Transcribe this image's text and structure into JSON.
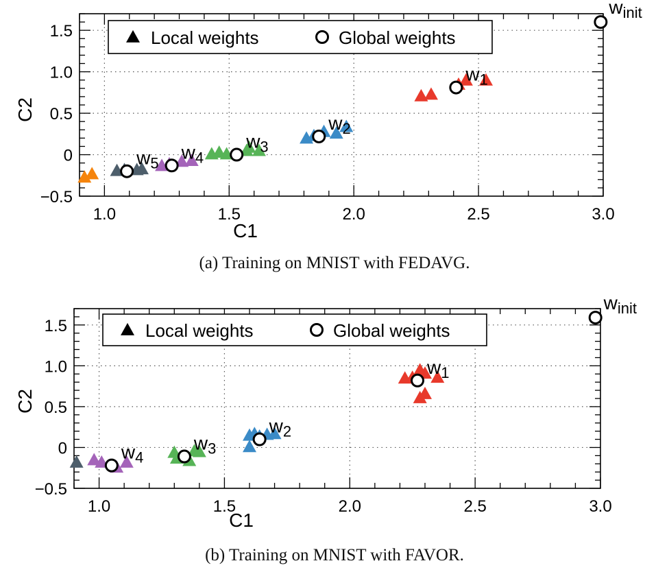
{
  "chart_data": [
    {
      "type": "scatter",
      "caption": "(a) Training on MNIST with FEDAVG.",
      "xlabel": "C1",
      "ylabel": "C2",
      "xlim": [
        0.9,
        3.0
      ],
      "ylim": [
        -0.5,
        1.7
      ],
      "x_ticks": [
        "1.0",
        "1.5",
        "2.0",
        "2.5",
        "3.0"
      ],
      "y_ticks": [
        "−0.5",
        "0",
        "0.5",
        "1.0",
        "1.5"
      ],
      "grid": true,
      "legend": {
        "placement": "top-left",
        "entries": [
          "Local weights",
          "Global weights"
        ]
      },
      "global_weights": [
        {
          "label": "w",
          "sub": "init",
          "x": 2.99,
          "y": 1.6
        },
        {
          "label": "w",
          "sub": "1",
          "x": 2.41,
          "y": 0.81
        },
        {
          "label": "w",
          "sub": "2",
          "x": 1.86,
          "y": 0.22
        },
        {
          "label": "w",
          "sub": "3",
          "x": 1.53,
          "y": 0.0
        },
        {
          "label": "w",
          "sub": "4",
          "x": 1.27,
          "y": -0.13
        },
        {
          "label": "w",
          "sub": "5",
          "x": 1.09,
          "y": -0.2
        }
      ],
      "local_weights": [
        {
          "color": "#e8392b",
          "points": [
            [
              2.27,
              0.7
            ],
            [
              2.31,
              0.72
            ],
            [
              2.42,
              0.84
            ],
            [
              2.45,
              0.89
            ],
            [
              2.53,
              0.89
            ]
          ]
        },
        {
          "color": "#3b8bc7",
          "points": [
            [
              1.81,
              0.19
            ],
            [
              1.84,
              0.22
            ],
            [
              1.88,
              0.27
            ],
            [
              1.93,
              0.25
            ],
            [
              1.97,
              0.33
            ]
          ]
        },
        {
          "color": "#57b457",
          "points": [
            [
              1.43,
              0.0
            ],
            [
              1.46,
              0.02
            ],
            [
              1.49,
              0.0
            ],
            [
              1.57,
              0.04
            ],
            [
              1.58,
              0.08
            ],
            [
              1.62,
              0.04
            ]
          ]
        },
        {
          "color": "#a464b9",
          "points": [
            [
              1.23,
              -0.14
            ],
            [
              1.26,
              -0.12
            ],
            [
              1.31,
              -0.09
            ],
            [
              1.35,
              -0.08
            ]
          ]
        },
        {
          "color": "#4d5e6b",
          "points": [
            [
              1.05,
              -0.2
            ],
            [
              1.08,
              -0.19
            ],
            [
              1.13,
              -0.19
            ],
            [
              1.15,
              -0.18
            ]
          ]
        },
        {
          "color": "#f5840c",
          "points": [
            [
              0.92,
              -0.28
            ],
            [
              0.95,
              -0.24
            ]
          ]
        }
      ]
    },
    {
      "type": "scatter",
      "caption": "(b) Training on MNIST with FAVOR.",
      "xlabel": "C1",
      "ylabel": "C2",
      "xlim": [
        0.9,
        3.0
      ],
      "ylim": [
        -0.5,
        1.7
      ],
      "x_ticks": [
        "1.0",
        "1.5",
        "2.0",
        "2.5",
        "3.0"
      ],
      "y_ticks": [
        "−0.5",
        "0",
        "0.5",
        "1.0",
        "1.5"
      ],
      "grid": true,
      "legend": {
        "placement": "top-left",
        "entries": [
          "Local weights",
          "Global weights"
        ]
      },
      "global_weights": [
        {
          "label": "w",
          "sub": "init",
          "x": 2.98,
          "y": 1.59
        },
        {
          "label": "w",
          "sub": "1",
          "x": 2.27,
          "y": 0.82
        },
        {
          "label": "w",
          "sub": "2",
          "x": 1.64,
          "y": 0.1
        },
        {
          "label": "w",
          "sub": "3",
          "x": 1.34,
          "y": -0.11
        },
        {
          "label": "w",
          "sub": "4",
          "x": 1.05,
          "y": -0.22
        }
      ],
      "local_weights": [
        {
          "color": "#e8392b",
          "points": [
            [
              2.22,
              0.84
            ],
            [
              2.25,
              0.85
            ],
            [
              2.28,
              0.94
            ],
            [
              2.3,
              0.9
            ],
            [
              2.35,
              0.85
            ],
            [
              2.28,
              0.6
            ],
            [
              2.3,
              0.65
            ]
          ]
        },
        {
          "color": "#3b8bc7",
          "points": [
            [
              1.6,
              0.0
            ],
            [
              1.6,
              0.14
            ],
            [
              1.62,
              0.16
            ],
            [
              1.64,
              0.13
            ],
            [
              1.67,
              0.15
            ],
            [
              1.7,
              0.16
            ]
          ]
        },
        {
          "color": "#57b457",
          "points": [
            [
              1.3,
              -0.07
            ],
            [
              1.31,
              -0.14
            ],
            [
              1.36,
              -0.17
            ],
            [
              1.38,
              -0.05
            ],
            [
              1.4,
              -0.06
            ]
          ]
        },
        {
          "color": "#a464b9",
          "points": [
            [
              0.98,
              -0.16
            ],
            [
              1.01,
              -0.19
            ],
            [
              1.07,
              -0.25
            ],
            [
              1.11,
              -0.19
            ]
          ]
        },
        {
          "color": "#4d5e6b",
          "points": [
            [
              0.91,
              -0.19
            ]
          ]
        }
      ]
    }
  ]
}
